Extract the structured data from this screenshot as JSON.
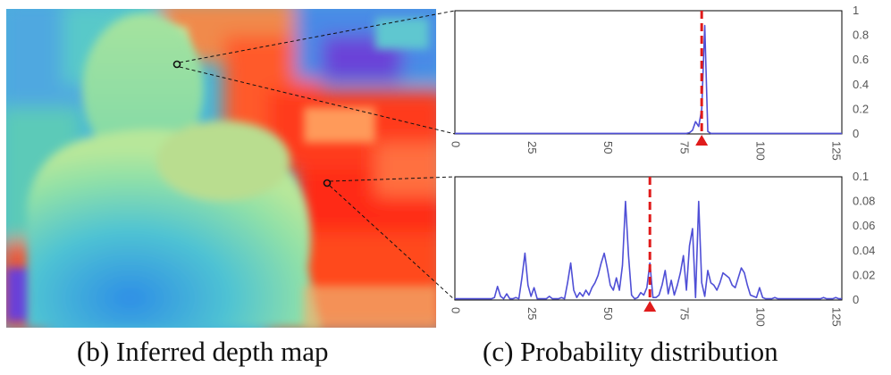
{
  "captions": {
    "left": "(b) Inferred depth map",
    "right": "(c) Probability distribution"
  },
  "chart_data": [
    {
      "type": "line",
      "xlim": [
        0,
        127
      ],
      "ylim": [
        0,
        1
      ],
      "x_ticks": [
        "0",
        "25",
        "50",
        "75",
        "100",
        "125"
      ],
      "y_ticks": [
        "0",
        "0.2",
        "0.4",
        "0.6",
        "0.8",
        "1"
      ],
      "line_color": "#4f4fd6",
      "marker_x": 81,
      "marker_color": "#e01b1b",
      "points": [
        [
          0,
          0.004
        ],
        [
          76,
          0.004
        ],
        [
          77,
          0.01
        ],
        [
          78,
          0.03
        ],
        [
          79,
          0.1
        ],
        [
          80,
          0.06
        ],
        [
          81,
          0.2
        ],
        [
          82,
          0.88
        ],
        [
          83,
          0.02
        ],
        [
          84,
          0.004
        ],
        [
          127,
          0.004
        ]
      ]
    },
    {
      "type": "line",
      "xlim": [
        0,
        127
      ],
      "ylim": [
        0,
        0.1
      ],
      "x_ticks": [
        "0",
        "25",
        "50",
        "75",
        "100",
        "125"
      ],
      "y_ticks": [
        "0",
        "0.02",
        "0.04",
        "0.06",
        "0.08",
        "0.1"
      ],
      "line_color": "#4f4fd6",
      "marker_x": 64,
      "marker_color": "#e01b1b",
      "points": [
        [
          0,
          0.001
        ],
        [
          12,
          0.001
        ],
        [
          13,
          0.002
        ],
        [
          14,
          0.011
        ],
        [
          15,
          0.003
        ],
        [
          16,
          0.001
        ],
        [
          17,
          0.005
        ],
        [
          18,
          0.001
        ],
        [
          19,
          0.001
        ],
        [
          20,
          0.002
        ],
        [
          21,
          0.001
        ],
        [
          22,
          0.018
        ],
        [
          23,
          0.038
        ],
        [
          24,
          0.012
        ],
        [
          25,
          0.003
        ],
        [
          26,
          0.01
        ],
        [
          27,
          0.001
        ],
        [
          28,
          0.001
        ],
        [
          29,
          0.001
        ],
        [
          30,
          0.001
        ],
        [
          31,
          0.003
        ],
        [
          32,
          0.001
        ],
        [
          33,
          0.001
        ],
        [
          34,
          0.001
        ],
        [
          35,
          0.002
        ],
        [
          36,
          0.001
        ],
        [
          37,
          0.014
        ],
        [
          38,
          0.03
        ],
        [
          39,
          0.008
        ],
        [
          40,
          0.002
        ],
        [
          41,
          0.006
        ],
        [
          42,
          0.003
        ],
        [
          43,
          0.008
        ],
        [
          44,
          0.004
        ],
        [
          45,
          0.01
        ],
        [
          46,
          0.014
        ],
        [
          47,
          0.02
        ],
        [
          48,
          0.03
        ],
        [
          49,
          0.038
        ],
        [
          50,
          0.026
        ],
        [
          51,
          0.012
        ],
        [
          52,
          0.008
        ],
        [
          53,
          0.018
        ],
        [
          54,
          0.008
        ],
        [
          55,
          0.028
        ],
        [
          56,
          0.08
        ],
        [
          57,
          0.036
        ],
        [
          58,
          0.004
        ],
        [
          59,
          0.001
        ],
        [
          60,
          0.002
        ],
        [
          61,
          0.006
        ],
        [
          62,
          0.004
        ],
        [
          63,
          0.01
        ],
        [
          64,
          0.03
        ],
        [
          65,
          0.002
        ],
        [
          66,
          0.002
        ],
        [
          67,
          0.004
        ],
        [
          68,
          0.012
        ],
        [
          69,
          0.024
        ],
        [
          70,
          0.005
        ],
        [
          71,
          0.016
        ],
        [
          72,
          0.004
        ],
        [
          73,
          0.012
        ],
        [
          74,
          0.022
        ],
        [
          75,
          0.036
        ],
        [
          76,
          0.008
        ],
        [
          77,
          0.044
        ],
        [
          78,
          0.058
        ],
        [
          79,
          0.002
        ],
        [
          80,
          0.08
        ],
        [
          81,
          0.014
        ],
        [
          82,
          0.003
        ],
        [
          83,
          0.024
        ],
        [
          84,
          0.014
        ],
        [
          85,
          0.012
        ],
        [
          86,
          0.008
        ],
        [
          87,
          0.014
        ],
        [
          88,
          0.022
        ],
        [
          89,
          0.02
        ],
        [
          90,
          0.018
        ],
        [
          91,
          0.012
        ],
        [
          92,
          0.01
        ],
        [
          93,
          0.018
        ],
        [
          94,
          0.026
        ],
        [
          95,
          0.022
        ],
        [
          96,
          0.012
        ],
        [
          97,
          0.004
        ],
        [
          98,
          0.003
        ],
        [
          99,
          0.002
        ],
        [
          100,
          0.01
        ],
        [
          101,
          0.002
        ],
        [
          102,
          0.001
        ],
        [
          103,
          0.001
        ],
        [
          104,
          0.001
        ],
        [
          105,
          0.002
        ],
        [
          106,
          0.001
        ],
        [
          120,
          0.001
        ],
        [
          121,
          0.002
        ],
        [
          122,
          0.001
        ],
        [
          124,
          0.001
        ],
        [
          125,
          0.002
        ],
        [
          126,
          0.001
        ],
        [
          127,
          0.001
        ]
      ]
    }
  ]
}
